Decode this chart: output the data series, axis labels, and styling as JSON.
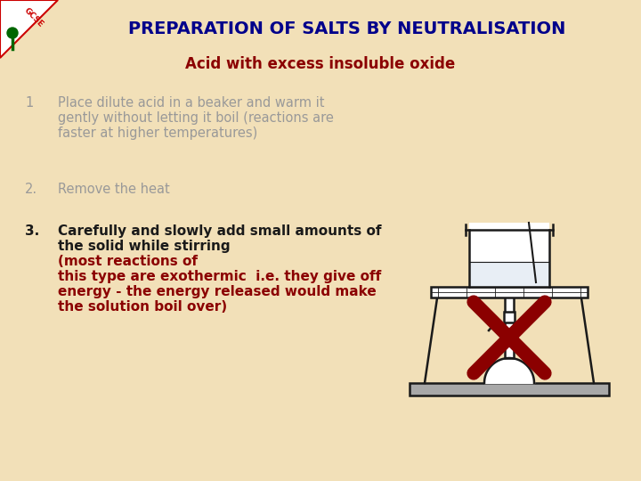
{
  "title": "PREPARATION OF SALTS BY NEUTRALISATION",
  "subtitle": "Acid with excess insoluble oxide",
  "title_color": "#00008B",
  "subtitle_color": "#8B0000",
  "bg_color": "#F2E0B8",
  "step1_num": "1",
  "step1_text_line1": "Place dilute acid in a beaker and warm it",
  "step1_text_line2": "gently without letting it boil (reactions are",
  "step1_text_line3": "faster at higher temperatures)",
  "step2_num": "2.",
  "step2_text": "Remove the heat",
  "step3_num": "3.",
  "step3_black_line1": "Carefully and slowly add small amounts of",
  "step3_black_line2": "the solid while stirring ",
  "step3_red_line1": "(most reactions of",
  "step3_red_line2": "this type are exothermic  i.e. they give off",
  "step3_red_line3": "energy - the energy released would make",
  "step3_red_line4": "the solution boil over)",
  "step_color_gray": "#999999",
  "step_color_black": "#1a1a1a",
  "step_color_red": "#8B0000",
  "cross_color": "#8B0000",
  "diagram_line_color": "#1a1a1a",
  "gcse_bg": "#FFFFFF",
  "gcse_red": "#CC0000",
  "gcse_green": "#006600"
}
